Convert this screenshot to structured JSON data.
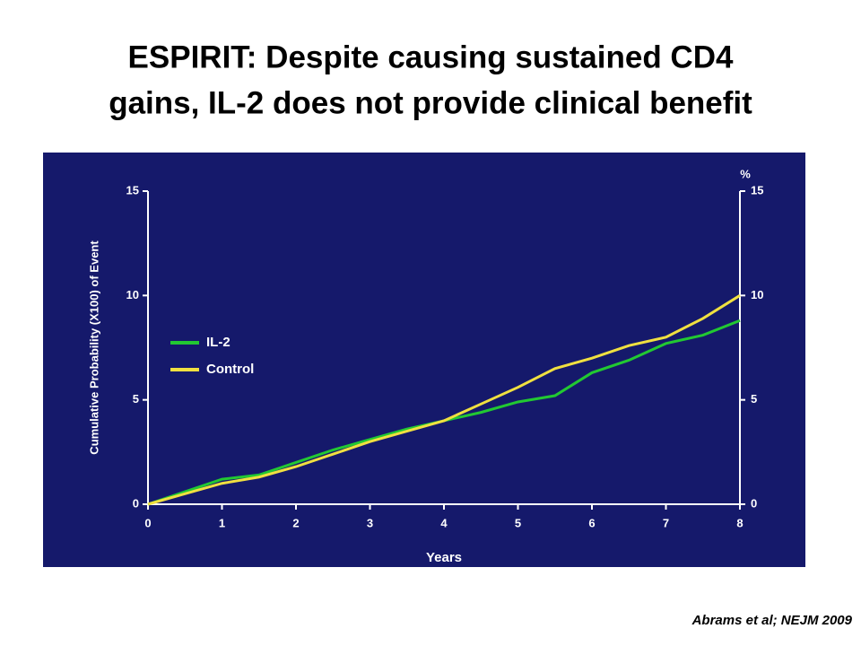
{
  "title": [
    "ESPIRIT: Despite causing sustained CD4",
    "gains, IL-2 does not provide clinical benefit"
  ],
  "citation": "Abrams et al; NEJM 2009",
  "chart_data": {
    "type": "line",
    "ylabel": "Cumulative Probability (X100) of Event",
    "xlabel": "Years",
    "y2label": "%",
    "x": [
      0,
      0.5,
      1,
      1.5,
      2,
      2.5,
      3,
      3.5,
      4,
      4.5,
      5,
      5.5,
      6,
      6.5,
      7,
      7.5,
      8
    ],
    "series": [
      {
        "name": "IL-2",
        "color": "#22c832",
        "values": [
          0,
          0.6,
          1.2,
          1.4,
          2.0,
          2.6,
          3.1,
          3.6,
          4.0,
          4.4,
          4.9,
          5.2,
          6.3,
          6.9,
          7.7,
          8.1,
          8.8
        ]
      },
      {
        "name": "Control",
        "color": "#f0e040",
        "values": [
          0,
          0.5,
          1.0,
          1.3,
          1.8,
          2.4,
          3.0,
          3.5,
          4.0,
          4.8,
          5.6,
          6.5,
          7.0,
          7.6,
          8.0,
          8.9,
          10.0
        ]
      }
    ],
    "xlim": [
      0,
      8
    ],
    "xticks": [
      0,
      1,
      2,
      3,
      4,
      5,
      6,
      7,
      8
    ],
    "ylim": [
      0,
      15
    ],
    "yticks": [
      0,
      5,
      10,
      15
    ],
    "y2lim": [
      0,
      15
    ],
    "y2ticks": [
      0,
      5,
      10,
      15
    ],
    "legend": "upper left"
  }
}
